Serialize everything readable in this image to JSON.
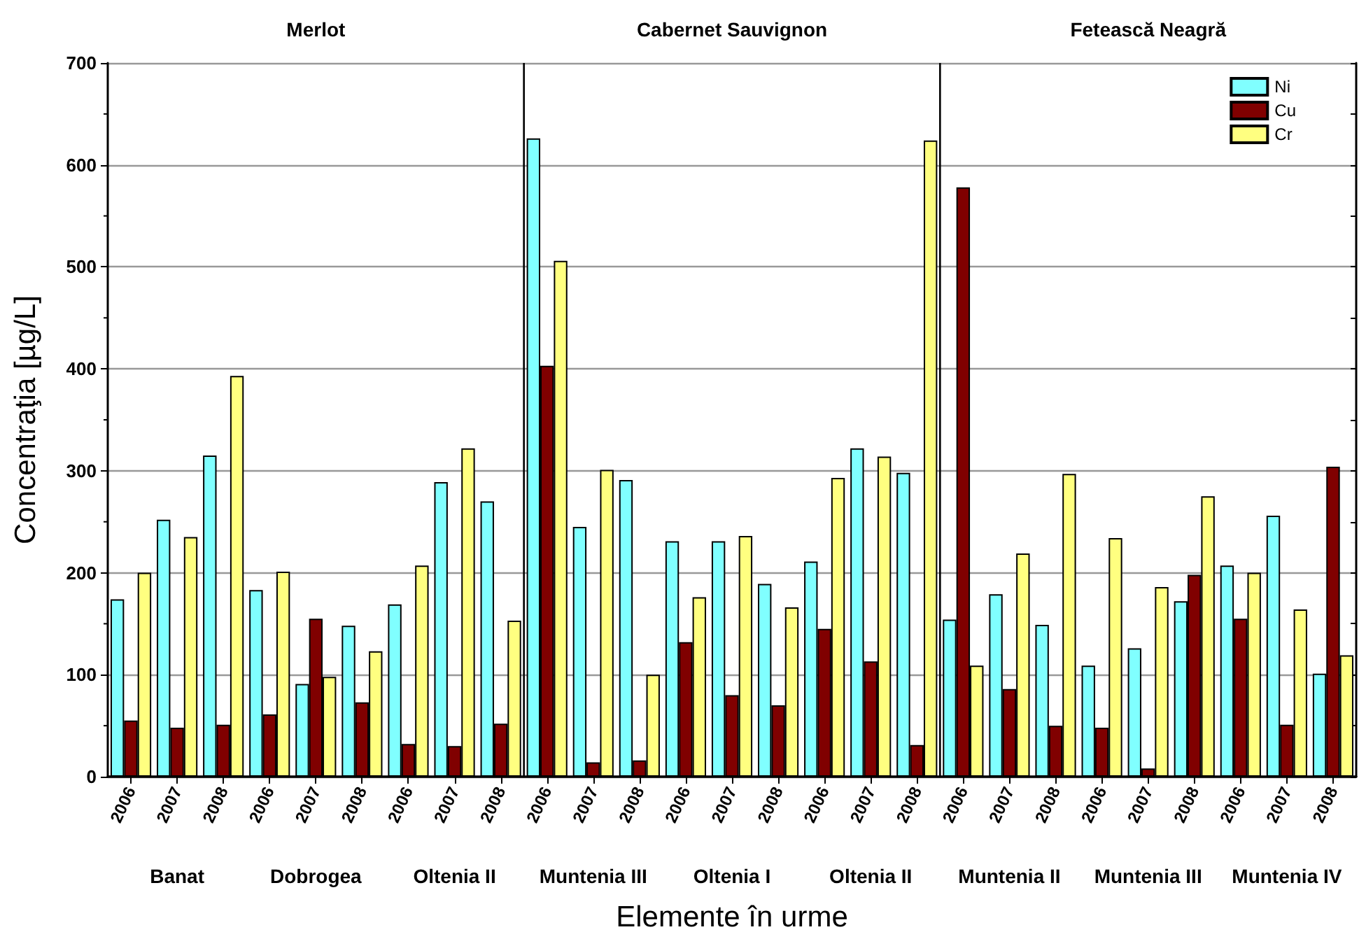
{
  "chart_data": {
    "type": "bar",
    "xlabel": "Elemente în urme",
    "ylabel": "Concentraţia [µg/L]",
    "categories": [
      "2006",
      "2007",
      "2008",
      "2006",
      "2007",
      "2008",
      "2006",
      "2007",
      "2008",
      "2006",
      "2007",
      "2008",
      "2006",
      "2007",
      "2008",
      "2006",
      "2007",
      "2008",
      "2006",
      "2007",
      "2008",
      "2006",
      "2007",
      "2008",
      "2006",
      "2007",
      "2008"
    ],
    "series": [
      {
        "name": "Ni",
        "color": "#80ffff",
        "values": [
          174,
          252,
          315,
          183,
          91,
          148,
          169,
          289,
          270,
          626,
          245,
          291,
          231,
          231,
          189,
          211,
          322,
          298,
          154,
          179,
          149,
          109,
          126,
          172,
          207,
          256,
          101
        ]
      },
      {
        "name": "Cu",
        "color": "#800000",
        "values": [
          55,
          48,
          51,
          61,
          155,
          73,
          32,
          30,
          52,
          403,
          14,
          16,
          132,
          80,
          70,
          145,
          113,
          31,
          578,
          86,
          50,
          48,
          8,
          198,
          155,
          51,
          304
        ]
      },
      {
        "name": "Cr",
        "color": "#ffff80",
        "values": [
          200,
          235,
          393,
          201,
          98,
          123,
          207,
          322,
          153,
          506,
          301,
          100,
          176,
          236,
          166,
          293,
          314,
          624,
          109,
          219,
          297,
          234,
          186,
          275,
          200,
          164,
          119
        ]
      }
    ],
    "annotations": [
      "Merlot",
      "Cabernet Sauvignon",
      "Fetească Neagră",
      "Banat",
      "Dobrogea",
      "Oltenia II",
      "Muntenia III",
      "Oltenia I",
      "Oltenia II",
      "Muntenia II",
      "Muntenia III",
      "Muntenia IV"
    ],
    "ylim": [
      0,
      700
    ],
    "yticks": [
      0,
      100,
      200,
      300,
      400,
      500,
      600,
      700
    ],
    "grid": "y",
    "legend": "top right"
  }
}
